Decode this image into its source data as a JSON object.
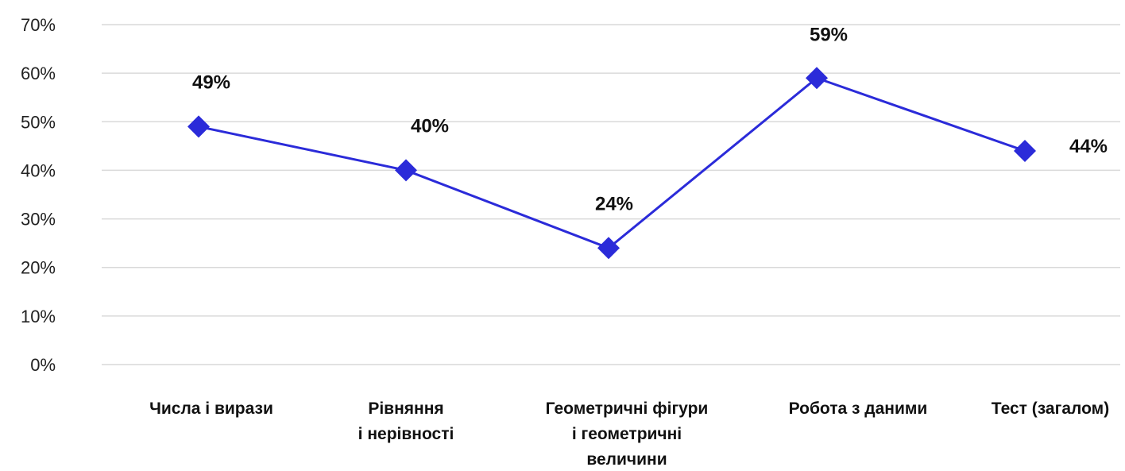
{
  "chart_data": {
    "type": "line",
    "categories": [
      [
        "Числа і вирази"
      ],
      [
        "Рівняння",
        "і нерівності"
      ],
      [
        "Геометричні фігури",
        "і геометричні",
        "величини"
      ],
      [
        "Робота з даними"
      ],
      [
        "Тест (загалом)"
      ]
    ],
    "series": [
      {
        "values": [
          49,
          40,
          24,
          59,
          44
        ],
        "color": "#2b2bd9",
        "marker": "diamond"
      }
    ],
    "data_labels": [
      "49%",
      "40%",
      "24%",
      "59%",
      "44%"
    ],
    "y_ticks": [
      "0%",
      "10%",
      "20%",
      "30%",
      "40%",
      "50%",
      "60%",
      "70%"
    ],
    "ylim": [
      0,
      70
    ],
    "grid": true,
    "legend": "none"
  }
}
